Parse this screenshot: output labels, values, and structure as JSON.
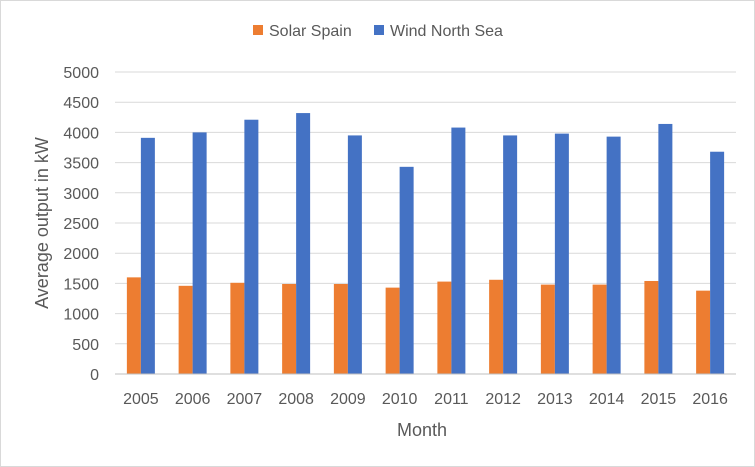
{
  "chart_data": {
    "type": "bar",
    "title": "",
    "xlabel": "Month",
    "ylabel": "Average output in kW",
    "categories": [
      "2005",
      "2006",
      "2007",
      "2008",
      "2009",
      "2010",
      "2011",
      "2012",
      "2013",
      "2014",
      "2015",
      "2016"
    ],
    "series": [
      {
        "name": "Solar Spain",
        "color": "#ed7d31",
        "values": [
          1600,
          1460,
          1510,
          1490,
          1490,
          1430,
          1530,
          1560,
          1480,
          1480,
          1540,
          1380
        ]
      },
      {
        "name": "Wind North Sea",
        "color": "#4472c4",
        "values": [
          3910,
          4000,
          4210,
          4320,
          3950,
          3430,
          4080,
          3950,
          3980,
          3930,
          4140,
          3680
        ]
      }
    ],
    "ylim": [
      0,
      5000
    ],
    "yticks": [
      0,
      500,
      1000,
      1500,
      2000,
      2500,
      3000,
      3500,
      4000,
      4500,
      5000
    ],
    "grid": true,
    "legend_position": "top"
  }
}
